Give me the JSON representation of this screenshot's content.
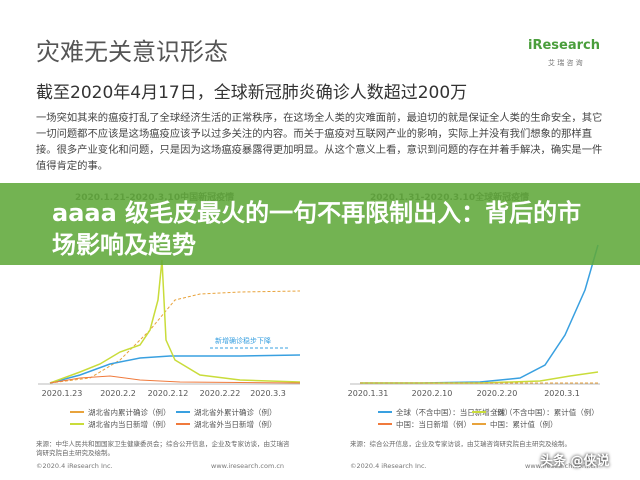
{
  "header": {
    "title": "灾难无关意识形态",
    "subtitle": "截至2020年4月17日，全球新冠肺炎确诊人数超过200万"
  },
  "logo": {
    "name": "iResearch",
    "tagline": "艾 瑞 咨 询"
  },
  "body": {
    "paragraph": "一场突如其来的瘟疫打乱了全球经济生活的正常秩序，在这场全人类的灾难面前，最迫切的就是保证全人类的生命安全，其它一切问题都不应该是这场瘟疫应该予以过多关注的内容。而关于瘟疫对互联网产业的影响，实际上并没有我们想象的那样直接。很多产业变化和问题，只是因为这场瘟疫暴露得更加明显。从这个意义上看，意识到问题的存在并着手解决，确实是一件值得肯定的事。"
  },
  "charts": [
    {
      "title": "2020.1.21-2020.3.10中国新冠疫情",
      "annotation": "新增确诊稳步下降",
      "x_labels": [
        "2020.1.23",
        "2020.2.2",
        "2020.2.12",
        "2020.2.22",
        "2020.3.3"
      ],
      "legend": [
        "湖北省内累计确诊（例）",
        "湖北省外累计确诊（例）",
        "湖北省内当日新增（例）",
        "湖北省外当日新增（例）"
      ],
      "source": "来源：中华人民共和国国家卫生健康委员会；综合公开信息，企业及专家访谈，由艾瑞咨询研究院自主研究及绘制。"
    },
    {
      "title": "2020.1.31-2020.3.10全球新冠疫情",
      "x_labels": [
        "2020.1.31",
        "2020.2.10",
        "2020.2.20",
        "2020.3.1"
      ],
      "legend": [
        "全球（不含中国）：当日新增（例）",
        "全球（不含中国）：累计值（例）",
        "中国：当日新增（例）",
        "中国：累计值（例）"
      ],
      "source": "来源：综合公开信息，企业及专家访谈，由艾瑞咨询研究院自主研究及绘制。"
    }
  ],
  "footer": {
    "left": "©2020.4 iResearch Inc.",
    "right": "www.iresearch.com.cn"
  },
  "banner": {
    "text": "aaaa 级毛皮最火的一句不再限制出入：背后的市场影响及趋势"
  },
  "watermark": "头条 @侠说"
}
